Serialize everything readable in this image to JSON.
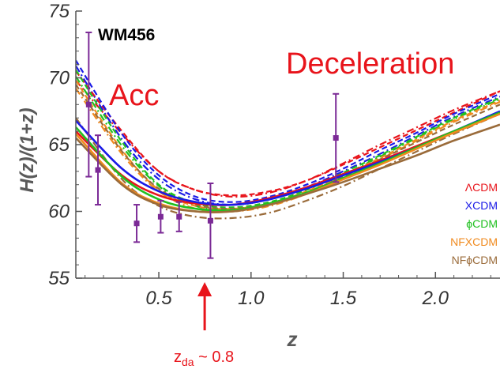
{
  "chart_data": {
    "type": "line",
    "title": "",
    "xlabel": "z",
    "ylabel": "H(z)/(1+z)",
    "xlim": [
      0.05,
      2.35
    ],
    "ylim": [
      55,
      75
    ],
    "xticks": [
      0.5,
      1.0,
      1.5,
      2.0
    ],
    "xtick_labels": [
      "0.5",
      "1.0",
      "1.5",
      "2.0"
    ],
    "yticks": [
      55,
      60,
      65,
      70,
      75
    ],
    "ytick_labels": [
      "55",
      "60",
      "65",
      "70",
      "75"
    ],
    "dataset_label": "WM456",
    "regions": {
      "acceleration": "Acc",
      "deceleration": "Deceleration"
    },
    "transition": {
      "z": 0.8,
      "label_main": "z",
      "label_sub": "da",
      "label_rest": " ~ 0.8",
      "color": "#e8141b"
    },
    "legend_position": "right",
    "data_points": {
      "color": "#7b2a96",
      "points": [
        {
          "z": 0.12,
          "y": 68.0,
          "err": 5.4
        },
        {
          "z": 0.17,
          "y": 63.1,
          "err": 2.6
        },
        {
          "z": 0.38,
          "y": 59.1,
          "err": 1.4
        },
        {
          "z": 0.51,
          "y": 59.6,
          "err": 1.2
        },
        {
          "z": 0.61,
          "y": 59.6,
          "err": 1.1
        },
        {
          "z": 0.78,
          "y": 59.3,
          "err": 2.8
        },
        {
          "z": 1.46,
          "y": 65.5,
          "err": 3.3
        }
      ]
    },
    "series": [
      {
        "name": "ΛCDM",
        "color": "#e8141b",
        "solid": [
          [
            0.05,
            66.0
          ],
          [
            0.3,
            62.7
          ],
          [
            0.5,
            61.2
          ],
          [
            0.7,
            60.6
          ],
          [
            0.9,
            60.5
          ],
          [
            1.1,
            61.0
          ],
          [
            1.3,
            61.8
          ],
          [
            1.5,
            62.8
          ],
          [
            1.7,
            63.8
          ],
          [
            1.9,
            64.9
          ],
          [
            2.1,
            66.0
          ],
          [
            2.35,
            67.3
          ]
        ],
        "dashed": [
          [
            0.05,
            70.5
          ],
          [
            0.3,
            66.0
          ],
          [
            0.5,
            63.0
          ],
          [
            0.7,
            61.6
          ],
          [
            0.9,
            61.2
          ],
          [
            1.1,
            61.5
          ],
          [
            1.3,
            62.3
          ],
          [
            1.5,
            63.5
          ],
          [
            1.7,
            64.8
          ],
          [
            1.9,
            66.1
          ],
          [
            2.1,
            67.4
          ],
          [
            2.35,
            69.0
          ]
        ],
        "dotdash": [
          [
            0.05,
            69.8
          ],
          [
            0.3,
            65.8
          ],
          [
            0.5,
            63.0
          ],
          [
            0.7,
            61.6
          ],
          [
            0.9,
            61.1
          ],
          [
            1.1,
            61.4
          ],
          [
            1.3,
            62.3
          ],
          [
            1.5,
            63.6
          ],
          [
            1.7,
            65.0
          ],
          [
            1.9,
            66.3
          ],
          [
            2.1,
            67.6
          ],
          [
            2.35,
            69.0
          ]
        ]
      },
      {
        "name": "XCDM",
        "color": "#1a1ae6",
        "solid": [
          [
            0.05,
            66.8
          ],
          [
            0.3,
            63.2
          ],
          [
            0.5,
            61.5
          ],
          [
            0.7,
            60.7
          ],
          [
            0.9,
            60.5
          ],
          [
            1.1,
            60.9
          ],
          [
            1.3,
            61.7
          ],
          [
            1.5,
            62.7
          ],
          [
            1.7,
            63.7
          ],
          [
            1.9,
            64.8
          ],
          [
            2.1,
            66.0
          ],
          [
            2.35,
            67.5
          ]
        ],
        "dashed": [
          [
            0.05,
            71.3
          ],
          [
            0.3,
            65.8
          ],
          [
            0.5,
            62.7
          ],
          [
            0.7,
            61.1
          ],
          [
            0.9,
            60.7
          ],
          [
            1.1,
            61.1
          ],
          [
            1.3,
            62.0
          ],
          [
            1.5,
            63.2
          ],
          [
            1.7,
            64.6
          ],
          [
            1.9,
            65.9
          ],
          [
            2.1,
            67.3
          ],
          [
            2.35,
            68.8
          ]
        ],
        "dotdash": [
          [
            0.05,
            70.9
          ],
          [
            0.3,
            65.4
          ],
          [
            0.5,
            62.4
          ],
          [
            0.7,
            60.9
          ],
          [
            0.9,
            60.5
          ],
          [
            1.1,
            60.9
          ],
          [
            1.3,
            61.8
          ],
          [
            1.5,
            63.0
          ],
          [
            1.7,
            64.3
          ],
          [
            1.9,
            65.7
          ],
          [
            2.1,
            67.1
          ],
          [
            2.35,
            68.6
          ]
        ]
      },
      {
        "name": "ϕCDM",
        "color": "#20c020",
        "solid": [
          [
            0.05,
            66.3
          ],
          [
            0.3,
            62.6
          ],
          [
            0.5,
            60.9
          ],
          [
            0.7,
            60.2
          ],
          [
            0.9,
            60.1
          ],
          [
            1.1,
            60.6
          ],
          [
            1.3,
            61.4
          ],
          [
            1.5,
            62.5
          ],
          [
            1.7,
            63.6
          ],
          [
            1.9,
            64.8
          ],
          [
            2.1,
            66.0
          ],
          [
            2.35,
            67.4
          ]
        ],
        "dashed": [
          [
            0.05,
            70.6
          ],
          [
            0.3,
            65.2
          ],
          [
            0.5,
            62.0
          ],
          [
            0.7,
            60.6
          ],
          [
            0.9,
            60.3
          ],
          [
            1.1,
            60.7
          ],
          [
            1.3,
            61.6
          ],
          [
            1.5,
            62.9
          ],
          [
            1.7,
            64.2
          ],
          [
            1.9,
            65.6
          ],
          [
            2.1,
            67.0
          ],
          [
            2.35,
            68.5
          ]
        ],
        "dotdash": [
          [
            0.05,
            70.1
          ],
          [
            0.3,
            64.9
          ],
          [
            0.5,
            61.9
          ],
          [
            0.7,
            60.4
          ],
          [
            0.9,
            60.1
          ],
          [
            1.1,
            60.5
          ],
          [
            1.3,
            61.4
          ],
          [
            1.5,
            62.7
          ],
          [
            1.7,
            64.1
          ],
          [
            1.9,
            65.5
          ],
          [
            2.1,
            66.9
          ],
          [
            2.35,
            68.4
          ]
        ]
      },
      {
        "name": "NFXCDM",
        "color": "#f08a1e",
        "solid": [
          [
            0.05,
            65.8
          ],
          [
            0.3,
            62.1
          ],
          [
            0.5,
            60.6
          ],
          [
            0.7,
            60.0
          ],
          [
            0.9,
            60.0
          ],
          [
            1.1,
            60.5
          ],
          [
            1.3,
            61.3
          ],
          [
            1.5,
            62.4
          ],
          [
            1.7,
            63.5
          ],
          [
            1.9,
            64.7
          ],
          [
            2.1,
            65.9
          ],
          [
            2.35,
            67.3
          ]
        ],
        "dashed": [
          [
            0.05,
            69.8
          ],
          [
            0.3,
            64.6
          ],
          [
            0.5,
            61.6
          ],
          [
            0.7,
            60.4
          ],
          [
            0.9,
            60.2
          ],
          [
            1.1,
            60.6
          ],
          [
            1.3,
            61.5
          ],
          [
            1.5,
            62.7
          ],
          [
            1.7,
            64.0
          ],
          [
            1.9,
            65.4
          ],
          [
            2.1,
            66.8
          ],
          [
            2.35,
            68.3
          ]
        ],
        "dotdash": [
          [
            0.05,
            69.2
          ],
          [
            0.3,
            64.3
          ],
          [
            0.5,
            61.5
          ],
          [
            0.7,
            60.2
          ],
          [
            0.9,
            60.0
          ],
          [
            1.1,
            60.4
          ],
          [
            1.3,
            61.3
          ],
          [
            1.5,
            62.5
          ],
          [
            1.7,
            63.9
          ],
          [
            1.9,
            65.3
          ],
          [
            2.1,
            66.7
          ],
          [
            2.35,
            68.2
          ]
        ]
      },
      {
        "name": "NFϕCDM",
        "color": "#9a6b3a",
        "solid": [
          [
            0.05,
            65.5
          ],
          [
            0.3,
            62.0
          ],
          [
            0.5,
            60.5
          ],
          [
            0.7,
            60.0
          ],
          [
            0.9,
            60.0
          ],
          [
            1.1,
            60.5
          ],
          [
            1.3,
            61.3
          ],
          [
            1.5,
            62.2
          ],
          [
            1.7,
            63.2
          ],
          [
            1.9,
            64.2
          ],
          [
            2.1,
            65.3
          ],
          [
            2.35,
            66.5
          ]
        ],
        "dashed": [
          [
            0.05,
            69.5
          ],
          [
            0.3,
            64.5
          ],
          [
            0.5,
            61.7
          ],
          [
            0.7,
            60.5
          ],
          [
            0.9,
            60.2
          ],
          [
            1.1,
            60.6
          ],
          [
            1.3,
            61.4
          ],
          [
            1.5,
            62.6
          ],
          [
            1.7,
            63.9
          ],
          [
            1.9,
            65.2
          ],
          [
            2.1,
            66.5
          ],
          [
            2.35,
            68.0
          ]
        ],
        "dotdash": [
          [
            0.05,
            67.0
          ],
          [
            0.3,
            62.4
          ],
          [
            0.5,
            60.4
          ],
          [
            0.7,
            59.6
          ],
          [
            0.9,
            59.5
          ],
          [
            1.1,
            59.9
          ],
          [
            1.3,
            60.8
          ],
          [
            1.5,
            61.9
          ],
          [
            1.7,
            63.2
          ],
          [
            1.9,
            64.5
          ],
          [
            2.1,
            65.8
          ],
          [
            2.35,
            67.3
          ]
        ]
      }
    ]
  }
}
